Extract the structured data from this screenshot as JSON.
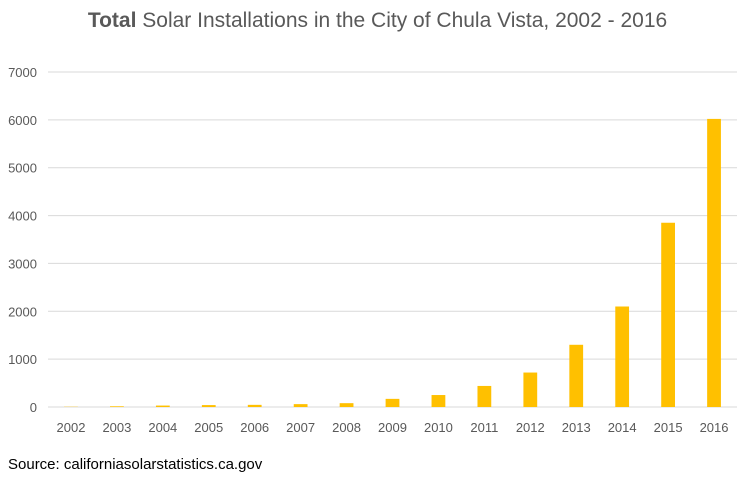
{
  "title": {
    "bold": "Total",
    "rest": " Solar Installations in the City of Chula Vista, 2002 - 2016"
  },
  "source": "Source: californiasolarstatistics.ca.gov",
  "colors": {
    "bar": "#FFC000",
    "grid": "#D9D9D9",
    "text": "#595959"
  },
  "chart_data": {
    "type": "bar",
    "title": "Total Solar Installations in the City of Chula Vista, 2002 - 2016",
    "categories": [
      "2002",
      "2003",
      "2004",
      "2005",
      "2006",
      "2007",
      "2008",
      "2009",
      "2010",
      "2011",
      "2012",
      "2013",
      "2014",
      "2015",
      "2016"
    ],
    "values": [
      5,
      15,
      30,
      40,
      45,
      60,
      80,
      170,
      250,
      440,
      720,
      1300,
      2100,
      3850,
      6020
    ],
    "ylim": [
      0,
      7000
    ],
    "yticks": [
      0,
      1000,
      2000,
      3000,
      4000,
      5000,
      6000,
      7000
    ],
    "grid": true,
    "legend": "none",
    "xlabel": "",
    "ylabel": ""
  }
}
